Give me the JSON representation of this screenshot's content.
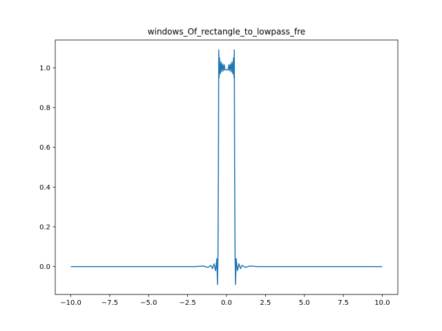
{
  "chart_data": {
    "type": "line",
    "title": "windows_Of_rectangle_to_lowpass_fre",
    "xlabel": "",
    "ylabel": "",
    "xlim": [
      -11.0,
      11.0
    ],
    "ylim": [
      -0.14,
      1.14
    ],
    "x_ticks": [
      -10.0,
      -7.5,
      -5.0,
      -2.5,
      0.0,
      2.5,
      5.0,
      7.5,
      10.0
    ],
    "x_tick_labels": [
      "−10.0",
      "−7.5",
      "−5.0",
      "−2.5",
      "0.0",
      "2.5",
      "5.0",
      "7.5",
      "10.0"
    ],
    "y_ticks": [
      0.0,
      0.2,
      0.4,
      0.6,
      0.8,
      1.0
    ],
    "y_tick_labels": [
      "0.0",
      "0.2",
      "0.4",
      "0.6",
      "0.8",
      "1.0"
    ],
    "grid": false,
    "legend": "none",
    "series": [
      {
        "color": "#1f77b4",
        "x": [
          -10.0,
          -7.5,
          -5.0,
          -3.0,
          -2.0,
          -1.5,
          -1.2,
          -1.0,
          -0.9,
          -0.8,
          -0.7,
          -0.62,
          -0.58,
          -0.55,
          -0.52,
          -0.5,
          -0.48,
          -0.45,
          -0.4,
          -0.35,
          -0.3,
          -0.25,
          -0.2,
          -0.15,
          -0.1,
          0.0,
          0.1,
          0.15,
          0.2,
          0.25,
          0.3,
          0.35,
          0.4,
          0.45,
          0.48,
          0.5,
          0.52,
          0.55,
          0.58,
          0.62,
          0.7,
          0.8,
          0.9,
          1.0,
          1.2,
          1.5,
          2.0,
          3.0,
          5.0,
          7.5,
          10.0
        ],
        "y": [
          0.0,
          0.0,
          0.0,
          0.0,
          0.0,
          0.003,
          -0.004,
          0.006,
          -0.01,
          0.014,
          -0.02,
          0.04,
          -0.09,
          0.05,
          0.5,
          1.09,
          0.95,
          1.05,
          0.97,
          1.03,
          0.98,
          1.02,
          0.985,
          1.015,
          0.99,
          0.99,
          0.99,
          1.015,
          0.985,
          1.02,
          0.98,
          1.03,
          0.97,
          1.05,
          0.95,
          1.09,
          0.5,
          0.05,
          -0.09,
          0.04,
          -0.02,
          0.014,
          -0.01,
          0.006,
          -0.004,
          0.003,
          0.0,
          0.0,
          0.0,
          0.0,
          0.0
        ]
      }
    ]
  }
}
